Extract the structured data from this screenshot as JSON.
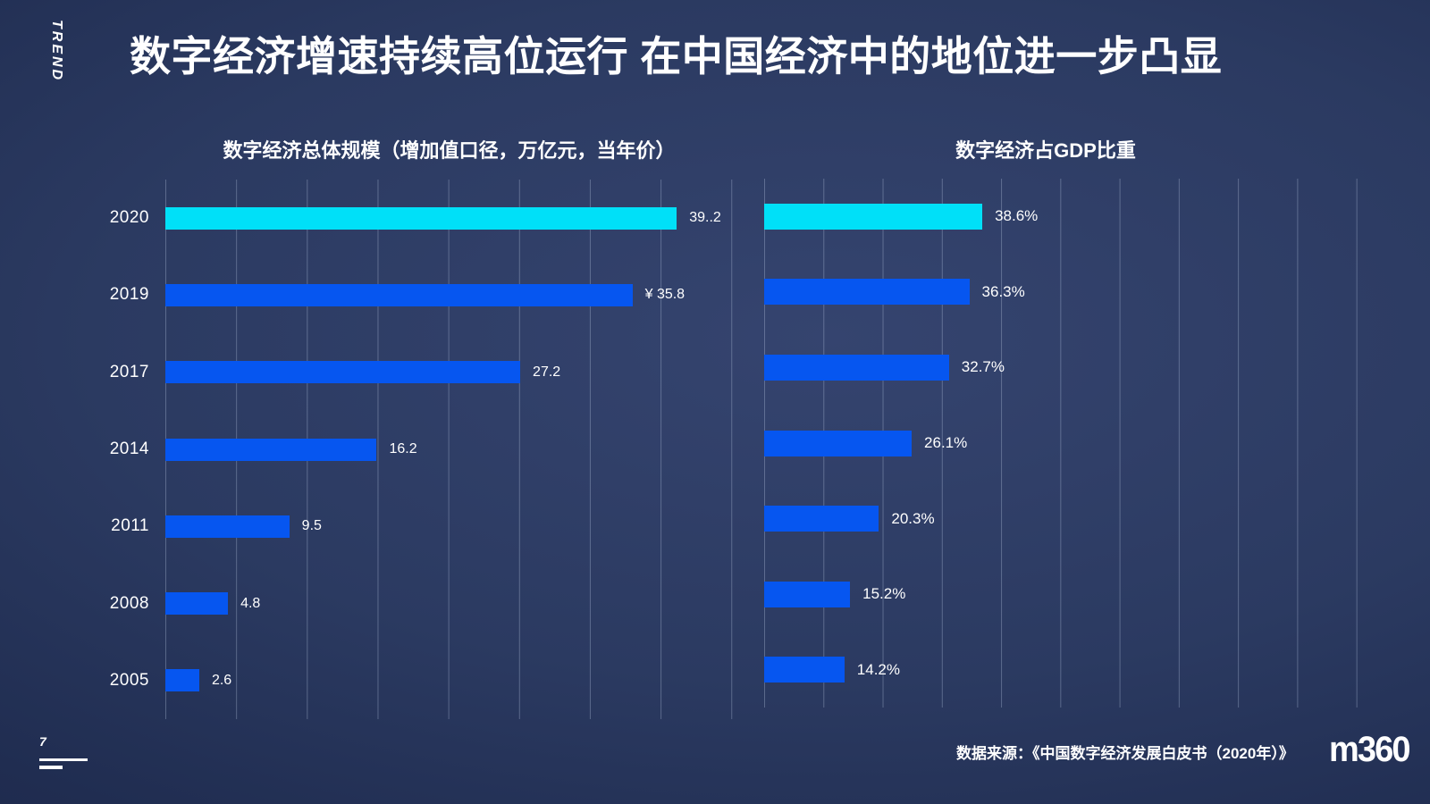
{
  "slide": {
    "side_label": "TREND",
    "title": "数字经济增速持续高位运行 在中国经济中的地位进一步凸显",
    "page_number": "7",
    "source_note": "数据来源：《中国数字经济发展白皮书（2020年）》",
    "logo_text": "m360"
  },
  "colors": {
    "background_center": "#35446f",
    "background_edge": "#1a2545",
    "bar_blue": "#0656f0",
    "bar_cyan": "#00e0f8",
    "gridline": "rgba(190,205,230,0.33)",
    "text": "#ffffff"
  },
  "chart_data": [
    {
      "type": "bar",
      "orientation": "horizontal",
      "title": "数字经济总体规模（增加值口径，万亿元，当年价）",
      "categories": [
        "2020",
        "2019",
        "2017",
        "2014",
        "2011",
        "2008",
        "2005"
      ],
      "values": [
        39.2,
        35.8,
        27.2,
        16.2,
        9.5,
        4.8,
        2.6
      ],
      "value_labels": [
        "39..2",
        "¥ 35.8",
        "27.2",
        "16.2",
        "9.5",
        "4.8",
        "2.6"
      ],
      "xlim": [
        0,
        43.5
      ],
      "unit": "万亿元",
      "highlight_index": 0,
      "show_category_labels": true,
      "legend": "none",
      "grid": "vertical"
    },
    {
      "type": "bar",
      "orientation": "horizontal",
      "title": "数字经济占GDP比重",
      "categories": [
        "2020",
        "2019",
        "2017",
        "2014",
        "2011",
        "2008",
        "2005"
      ],
      "values": [
        38.6,
        36.3,
        32.7,
        26.1,
        20.3,
        15.2,
        14.2
      ],
      "value_labels": [
        "38.6%",
        "36.3%",
        "32.7%",
        "26.1%",
        "20.3%",
        "15.2%",
        "14.2%"
      ],
      "xlim": [
        0,
        105
      ],
      "unit": "%",
      "highlight_index": 0,
      "show_category_labels": false,
      "legend": "none",
      "grid": "vertical"
    }
  ]
}
